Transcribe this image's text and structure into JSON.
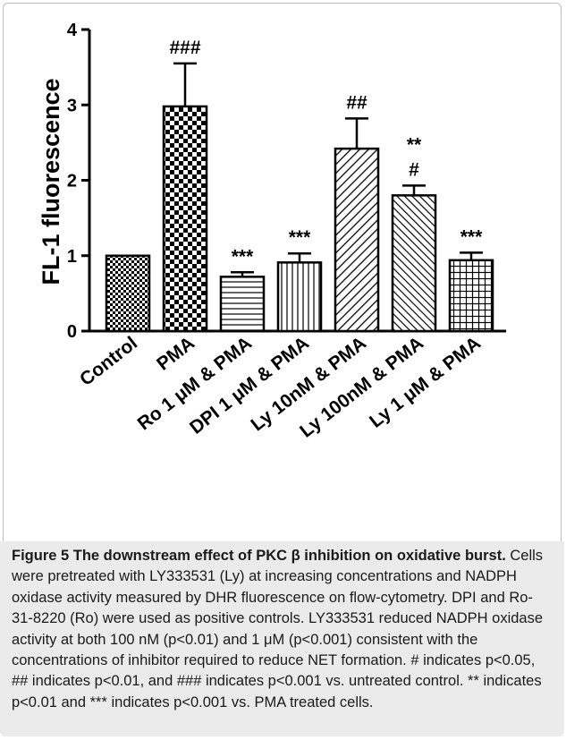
{
  "chart_data": {
    "type": "bar",
    "ylabel": "FL-1 fluorescence",
    "ylim": [
      0,
      4
    ],
    "yticks": [
      "0",
      "1",
      "2",
      "3",
      "4"
    ],
    "categories": [
      "Control",
      "PMA",
      "Ro 1 μM & PMA",
      "DPI 1 μM & PMA",
      "Ly 10nM & PMA",
      "Ly 100nM & PMA",
      "Ly 1 μM & PMA"
    ],
    "values": [
      1.0,
      2.98,
      0.72,
      0.91,
      2.42,
      1.8,
      0.94
    ],
    "errors": [
      0.0,
      0.57,
      0.06,
      0.12,
      0.4,
      0.13,
      0.1
    ],
    "patterns": [
      "checker-small",
      "checker-large",
      "horizontal",
      "vertical",
      "diagonal-right",
      "diagonal-left",
      "grid"
    ],
    "significance": [
      [],
      [
        "###"
      ],
      [
        "***"
      ],
      [
        "***"
      ],
      [
        "##"
      ],
      [
        "**",
        "#"
      ],
      [
        "***"
      ]
    ]
  },
  "caption": {
    "title": "Figure 5 The downstream effect of PKC β inhibition on oxidative burst.",
    "body": " Cells were pretreated with LY333531 (Ly) at increasing concentrations and NADPH oxidase activity measured by DHR fluorescence on flow-cytometry. DPI and Ro-31-8220 (Ro) were used as positive controls. LY333531 reduced NADPH oxidase activity at both 100 nM (p<0.01) and 1 μM (p<0.001) consistent with the concentrations of inhibitor required to reduce NET formation. # indicates p<0.05, ## indicates p<0.01, and ### indicates p<0.001 vs. untreated control. ** indicates p<0.01 and *** indicates p<0.001 vs. PMA treated cells."
  }
}
